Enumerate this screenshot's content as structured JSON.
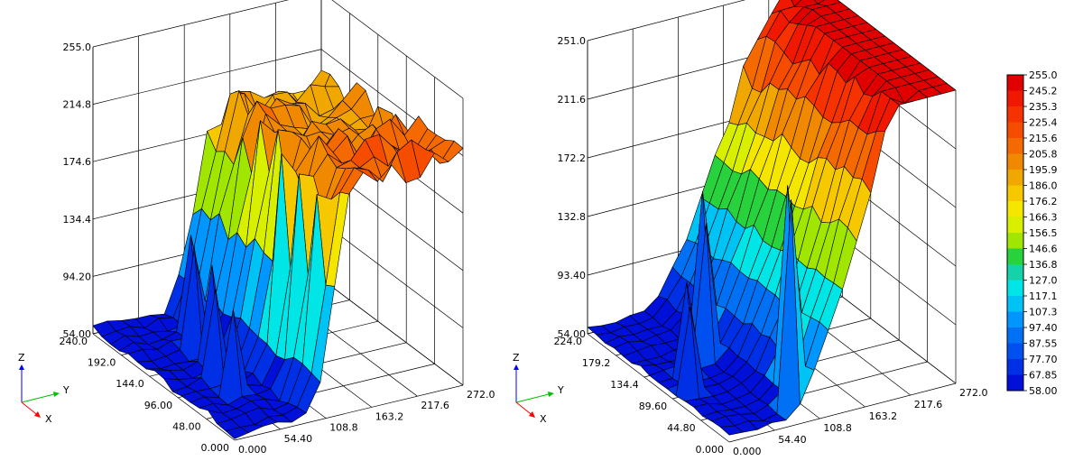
{
  "chart_data": [
    {
      "type": "surface",
      "title": "",
      "x_ticks": [
        "0.000",
        "48.00",
        "96.00",
        "144.0",
        "192.0",
        "240.0"
      ],
      "y_ticks": [
        "0.000",
        "54.40",
        "108.8",
        "163.2",
        "217.6",
        "272.0"
      ],
      "z_ticks": [
        "54.00",
        "94.20",
        "134.4",
        "174.6",
        "214.8",
        "255.0"
      ],
      "xlim": [
        0,
        240
      ],
      "ylim": [
        0,
        272
      ],
      "zlim": [
        54,
        255
      ],
      "grid_rows": 16,
      "grid_cols": 16,
      "profile": {
        "low": 58,
        "high": 190,
        "rise_start": 0.32,
        "rise_end": 0.55,
        "x_tilt": 28,
        "noise": 10
      },
      "spikes": [
        {
          "row": 2,
          "col": 7,
          "z": 200
        },
        {
          "row": 4,
          "col": 7,
          "z": 205
        },
        {
          "row": 6,
          "col": 7,
          "z": 210
        },
        {
          "row": 8,
          "col": 8,
          "z": 215
        },
        {
          "row": 10,
          "col": 8,
          "z": 212
        },
        {
          "row": 12,
          "col": 9,
          "z": 214
        },
        {
          "row": 14,
          "col": 9,
          "z": 212
        },
        {
          "row": 15,
          "col": 9,
          "z": 205
        },
        {
          "row": 5,
          "col": 3,
          "z": 115
        },
        {
          "row": 7,
          "col": 3,
          "z": 120
        },
        {
          "row": 9,
          "col": 4,
          "z": 125
        },
        {
          "row": 11,
          "col": 4,
          "z": 128
        },
        {
          "row": 13,
          "col": 5,
          "z": 125
        }
      ],
      "axis_labels": {
        "x": "X",
        "y": "Y",
        "z": "Z"
      }
    },
    {
      "type": "surface",
      "title": "",
      "x_ticks": [
        "0.000",
        "44.80",
        "89.60",
        "134.4",
        "179.2",
        "224.0"
      ],
      "y_ticks": [
        "0.000",
        "54.40",
        "108.8",
        "163.2",
        "217.6",
        "272.0"
      ],
      "z_ticks": [
        "54.00",
        "93.40",
        "132.8",
        "172.2",
        "211.6",
        "251.0"
      ],
      "xlim": [
        0,
        224
      ],
      "ylim": [
        0,
        272
      ],
      "zlim": [
        54,
        251
      ],
      "grid_rows": 16,
      "grid_cols": 16,
      "profile": {
        "low": 58,
        "high": 250,
        "rise_start": 0.22,
        "rise_end": 0.92,
        "x_tilt": 40,
        "noise": 6
      },
      "spikes": [
        {
          "row": 1,
          "col": 5,
          "z": 200
        },
        {
          "row": 3,
          "col": 6,
          "z": 198
        },
        {
          "row": 9,
          "col": 4,
          "z": 150
        },
        {
          "row": 11,
          "col": 5,
          "z": 160
        },
        {
          "row": 8,
          "col": 2,
          "z": 120
        },
        {
          "row": 6,
          "col": 1,
          "z": 115
        },
        {
          "row": 0,
          "col": 15,
          "z": 255
        },
        {
          "row": 1,
          "col": 13,
          "z": 245
        }
      ],
      "axis_labels": {
        "x": "X",
        "y": "Y",
        "z": "Z"
      }
    }
  ],
  "legend": {
    "values": [
      "255.0",
      "245.2",
      "235.3",
      "225.4",
      "215.6",
      "205.8",
      "195.9",
      "186.0",
      "176.2",
      "166.3",
      "156.5",
      "146.6",
      "136.8",
      "127.0",
      "117.1",
      "107.3",
      "97.40",
      "87.55",
      "77.70",
      "67.85",
      "58.00"
    ],
    "colors": [
      "#e00000",
      "#f01800",
      "#f53200",
      "#f54c00",
      "#f56a00",
      "#f08800",
      "#f0a800",
      "#f5c800",
      "#f5e600",
      "#d8f000",
      "#a0e600",
      "#28d23c",
      "#14d2aa",
      "#00e6e6",
      "#00c3f5",
      "#0096ff",
      "#0070f5",
      "#0050f0",
      "#0030e6",
      "#0010d8"
    ]
  }
}
